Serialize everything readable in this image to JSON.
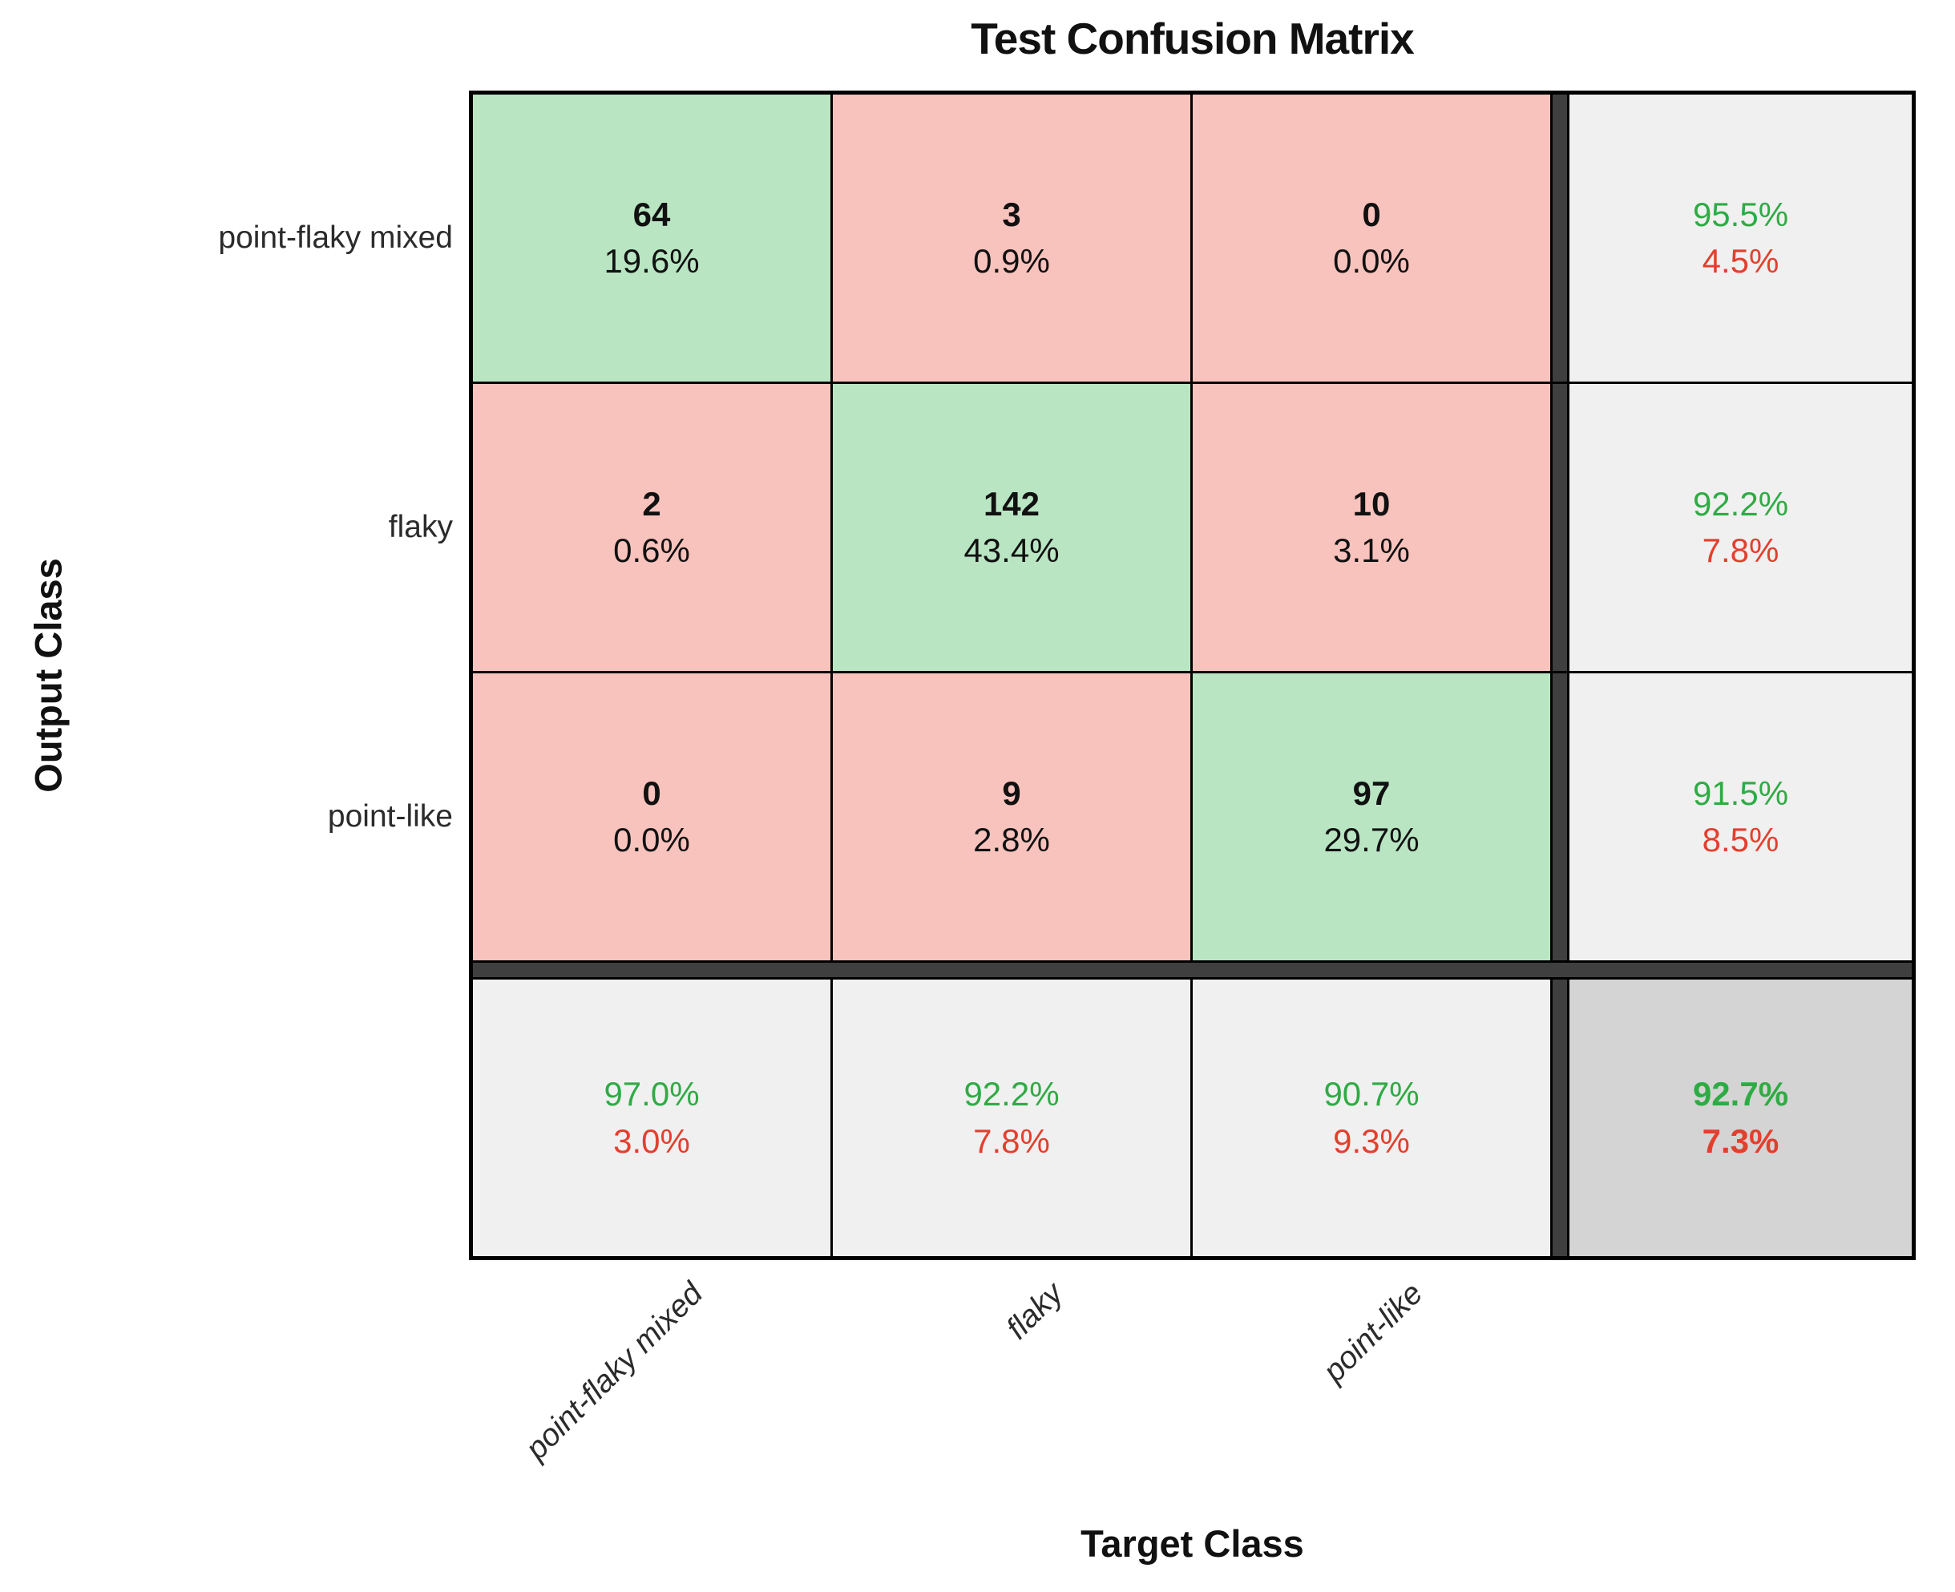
{
  "title": "Test Confusion Matrix",
  "colors": {
    "correct_cell": "#b9e5c3",
    "incorrect_cell": "#f9c3bd",
    "summary_cell": "#f0f0f0",
    "overall_cell": "#d4d4d4",
    "good_text": "#2fab44",
    "bad_text": "#e2402e",
    "separator": "#3f3f3f",
    "grid_line": "#000000"
  },
  "chart_data": {
    "type": "heatmap",
    "title": "Test Confusion Matrix",
    "xlabel": "Target Class",
    "ylabel": "Output Class",
    "classes": [
      "point-flaky mixed",
      "flaky",
      "point-like"
    ],
    "matrix_counts": [
      [
        64,
        3,
        0
      ],
      [
        2,
        142,
        10
      ],
      [
        0,
        9,
        97
      ]
    ],
    "cells": [
      [
        {
          "count": "64",
          "pct": "19.6%",
          "kind": "correct"
        },
        {
          "count": "3",
          "pct": "0.9%",
          "kind": "incorrect"
        },
        {
          "count": "0",
          "pct": "0.0%",
          "kind": "incorrect"
        }
      ],
      [
        {
          "count": "2",
          "pct": "0.6%",
          "kind": "incorrect"
        },
        {
          "count": "142",
          "pct": "43.4%",
          "kind": "correct"
        },
        {
          "count": "10",
          "pct": "3.1%",
          "kind": "incorrect"
        }
      ],
      [
        {
          "count": "0",
          "pct": "0.0%",
          "kind": "incorrect"
        },
        {
          "count": "9",
          "pct": "2.8%",
          "kind": "incorrect"
        },
        {
          "count": "97",
          "pct": "29.7%",
          "kind": "correct"
        }
      ]
    ],
    "row_summary": [
      {
        "good": "95.5%",
        "bad": "4.5%"
      },
      {
        "good": "92.2%",
        "bad": "7.8%"
      },
      {
        "good": "91.5%",
        "bad": "8.5%"
      }
    ],
    "col_summary": [
      {
        "good": "97.0%",
        "bad": "3.0%"
      },
      {
        "good": "92.2%",
        "bad": "7.8%"
      },
      {
        "good": "90.7%",
        "bad": "9.3%"
      }
    ],
    "overall": {
      "good": "92.7%",
      "bad": "7.3%"
    }
  }
}
